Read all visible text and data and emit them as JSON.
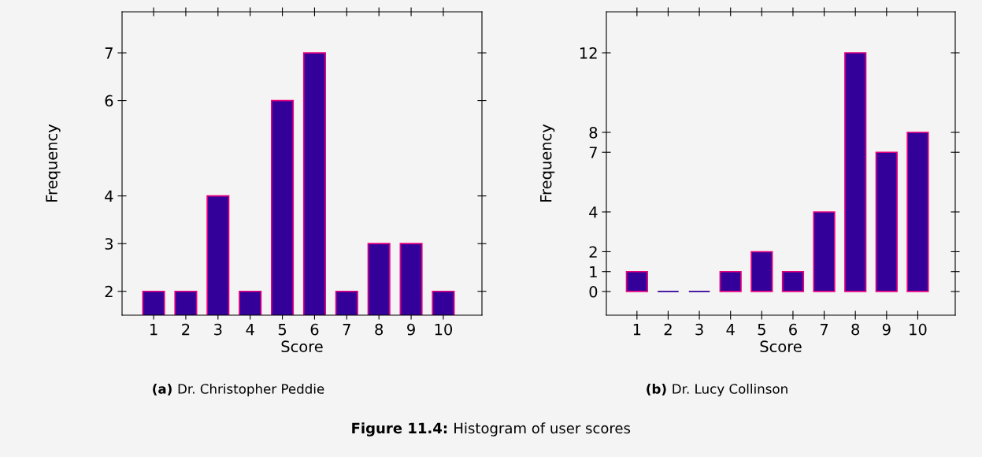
{
  "chart_data": [
    {
      "type": "bar",
      "xlabel": "Score",
      "ylabel": "Frequency",
      "x": [
        1,
        2,
        3,
        4,
        5,
        6,
        7,
        8,
        9,
        10
      ],
      "series": [
        {
          "color": "#330099",
          "values": [
            2,
            2,
            4,
            2,
            6,
            7,
            2,
            3,
            3,
            2
          ]
        }
      ],
      "xlim": [
        0.02,
        11.2
      ],
      "xticks": [
        1,
        2,
        3,
        4,
        5,
        6,
        7,
        8,
        9,
        10
      ],
      "ylim": [
        1.5,
        7.86
      ],
      "yticks": [
        2,
        3,
        4,
        6,
        7
      ],
      "grid": false,
      "legend": false,
      "annotations": [
        "(a) Dr. Christopher Peddie",
        "Figure 11.4: Histogram of user scores"
      ]
    },
    {
      "type": "bar",
      "xlabel": "Score",
      "ylabel": "Frequency",
      "x": [
        1,
        2,
        3,
        4,
        5,
        6,
        7,
        8,
        9,
        10
      ],
      "series": [
        {
          "color": "#330099",
          "values": [
            1,
            0,
            0,
            1,
            2,
            1,
            4,
            12,
            7,
            8
          ]
        }
      ],
      "xlim": [
        0.02,
        11.2
      ],
      "xticks": [
        1,
        2,
        3,
        4,
        5,
        6,
        7,
        8,
        9,
        10
      ],
      "ylim": [
        -1.19,
        14.06
      ],
      "yticks": [
        0,
        1,
        2,
        4,
        7,
        8,
        12
      ],
      "grid": false,
      "legend": false,
      "annotations": [
        "(b) Dr. Lucy Collinson"
      ]
    }
  ]
}
